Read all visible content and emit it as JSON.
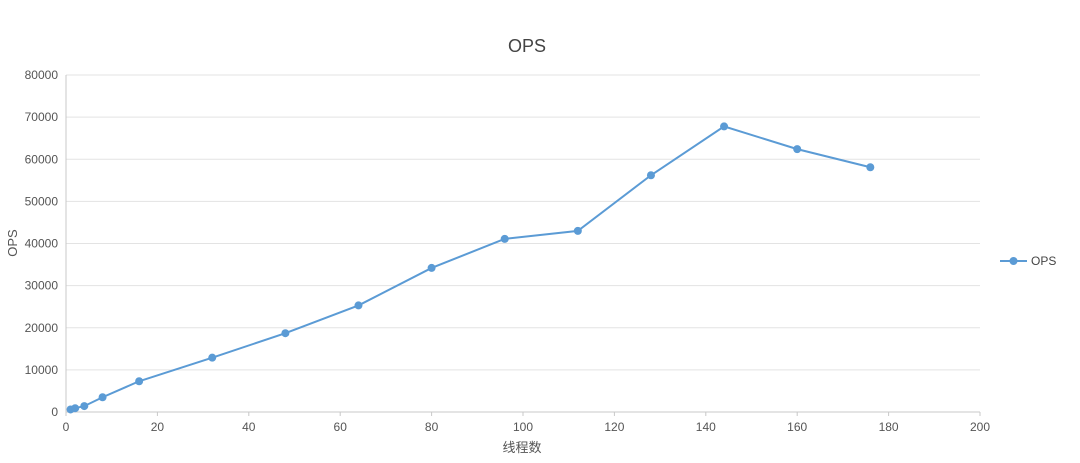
{
  "chart_data": {
    "type": "line",
    "title": "OPS",
    "xlabel": "线程数",
    "ylabel": "OPS",
    "xlim": [
      0,
      200
    ],
    "ylim": [
      0,
      80000
    ],
    "xticks": [
      "0",
      "20",
      "40",
      "60",
      "80",
      "100",
      "120",
      "140",
      "160",
      "180",
      "200"
    ],
    "yticks": [
      "0",
      "10000",
      "20000",
      "30000",
      "40000",
      "50000",
      "60000",
      "70000",
      "80000"
    ],
    "grid": "horizontal",
    "legend_position": "right",
    "series": [
      {
        "name": "OPS",
        "color": "#5b9bd5",
        "x": [
          1,
          2,
          4,
          8,
          16,
          32,
          48,
          64,
          80,
          96,
          112,
          128,
          144,
          160,
          176
        ],
        "y": [
          600,
          900,
          1400,
          3500,
          7300,
          12900,
          18700,
          25300,
          34200,
          41100,
          43000,
          56200,
          67800,
          62400,
          58100
        ]
      }
    ]
  }
}
